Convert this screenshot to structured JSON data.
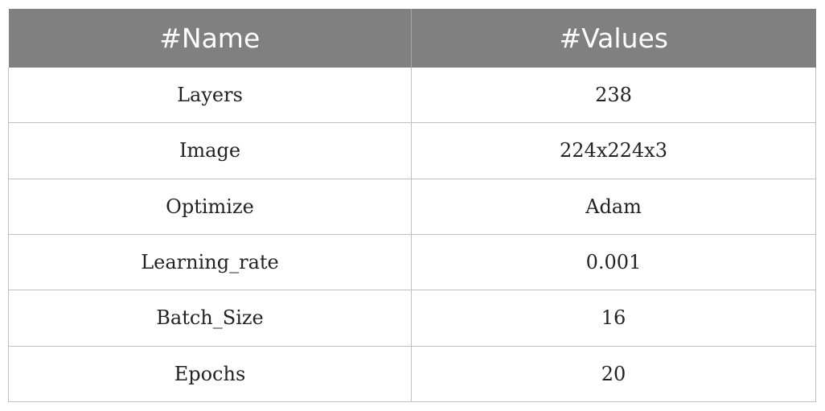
{
  "table": {
    "headers": [
      "#Name",
      "#Values"
    ],
    "rows": [
      {
        "name": "Layers",
        "value": "238"
      },
      {
        "name": "Image",
        "value": "224x224x3"
      },
      {
        "name": "Optimize",
        "value": "Adam"
      },
      {
        "name": "Learning_rate",
        "value": "0.001"
      },
      {
        "name": "Batch_Size",
        "value": "16"
      },
      {
        "name": "Epochs",
        "value": "20"
      }
    ],
    "colors": {
      "header_bg": "#808080",
      "header_text": "#ffffff",
      "grid": "#bfbfbf"
    }
  }
}
